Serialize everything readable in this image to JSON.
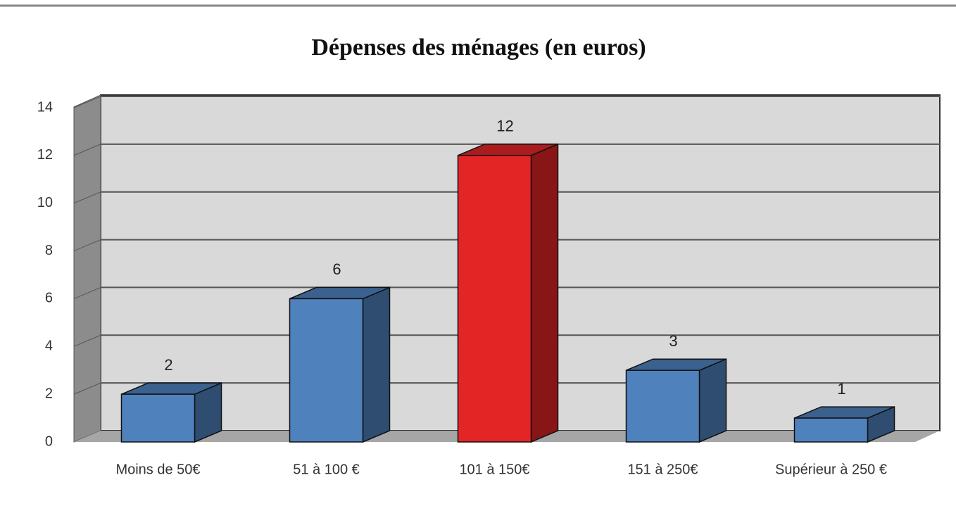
{
  "chart_data": {
    "type": "bar3d",
    "title": "Dépenses des ménages (en euros)",
    "categories": [
      "Moins de 50€",
      "51 à 100 €",
      "101 à 150€",
      "151 à 250€",
      "Supérieur à 250 €"
    ],
    "values": [
      2,
      6,
      12,
      3,
      1
    ],
    "colors": [
      "#4f81bd",
      "#4f81bd",
      "#e32526",
      "#4f81bd",
      "#4f81bd"
    ],
    "ylim": [
      0,
      14
    ],
    "yticks": [
      0,
      2,
      4,
      6,
      8,
      10,
      12,
      14
    ],
    "grid": true
  }
}
